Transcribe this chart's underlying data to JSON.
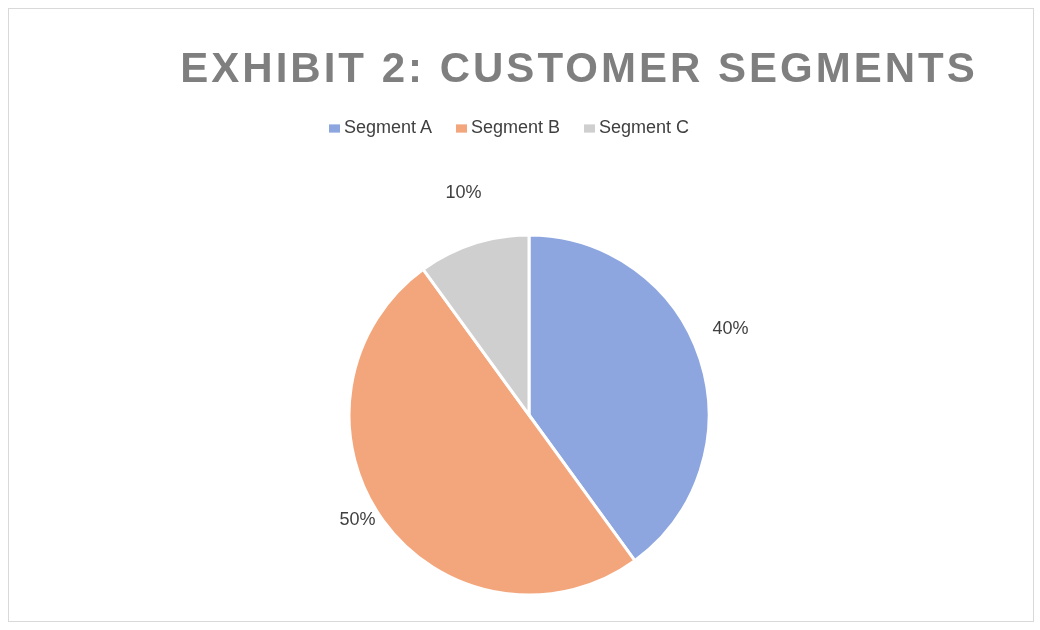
{
  "chart_data": {
    "type": "pie",
    "title": "EXHIBIT 2: CUSTOMER SEGMENTS",
    "categories": [
      "Segment A",
      "Segment B",
      "Segment C"
    ],
    "values": [
      40,
      50,
      10
    ],
    "colors": [
      "#8da6e0",
      "#f3a67c",
      "#cfcfcf"
    ],
    "value_labels": [
      "40%",
      "50%",
      "10%"
    ],
    "legend": "top"
  }
}
